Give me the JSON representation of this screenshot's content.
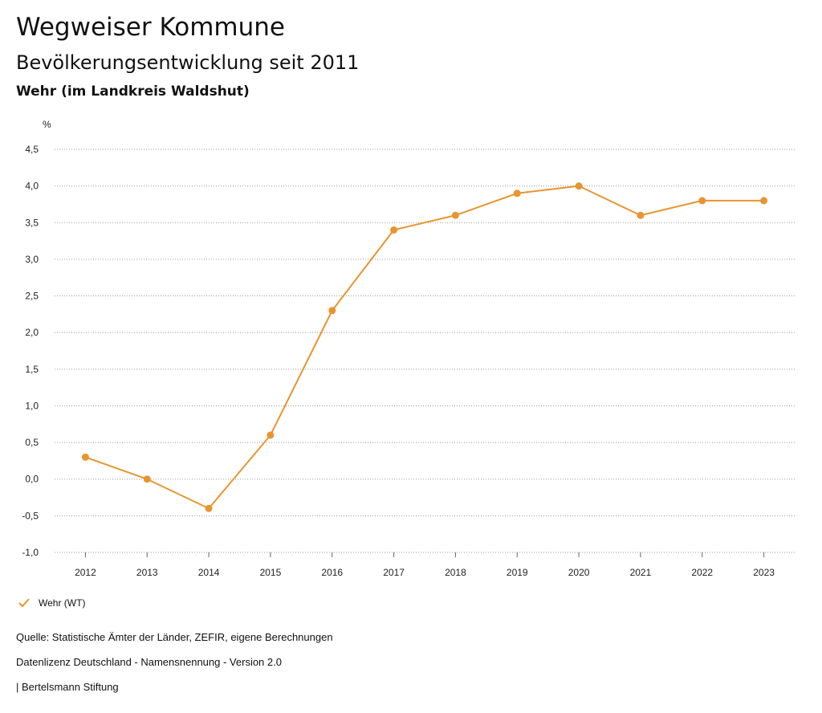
{
  "header": {
    "title": "Wegweiser Kommune",
    "subtitle": "Bevölkerungsentwicklung seit 2011",
    "location": "Wehr (im Landkreis Waldshut)"
  },
  "chart_data": {
    "type": "line",
    "ylabel": "%",
    "xlabel": "",
    "ylim": [
      -1.0,
      4.5
    ],
    "yticks": [
      -1.0,
      -0.5,
      0.0,
      0.5,
      1.0,
      1.5,
      2.0,
      2.5,
      3.0,
      3.5,
      4.0,
      4.5
    ],
    "ytick_labels": [
      "-1,0",
      "-0,5",
      "0,0",
      "0,5",
      "1,0",
      "1,5",
      "2,0",
      "2,5",
      "3,0",
      "3,5",
      "4,0",
      "4,5"
    ],
    "categories": [
      "2012",
      "2013",
      "2014",
      "2015",
      "2016",
      "2017",
      "2018",
      "2019",
      "2020",
      "2021",
      "2022",
      "2023"
    ],
    "series": [
      {
        "name": "Wehr (WT)",
        "color": "#E8952F",
        "values": [
          0.3,
          0.0,
          -0.4,
          0.6,
          2.3,
          3.4,
          3.6,
          3.9,
          4.0,
          3.6,
          3.8,
          3.8
        ]
      }
    ],
    "grid": true,
    "legend_position": "bottom-left"
  },
  "legend": {
    "label": "Wehr (WT)",
    "icon": "check-icon"
  },
  "footer": {
    "source": "Quelle: Statistische Ämter der Länder, ZEFIR, eigene Berechnungen",
    "license": "Datenlizenz Deutschland - Namensnennung - Version 2.0",
    "publisher": "| Bertelsmann Stiftung"
  }
}
